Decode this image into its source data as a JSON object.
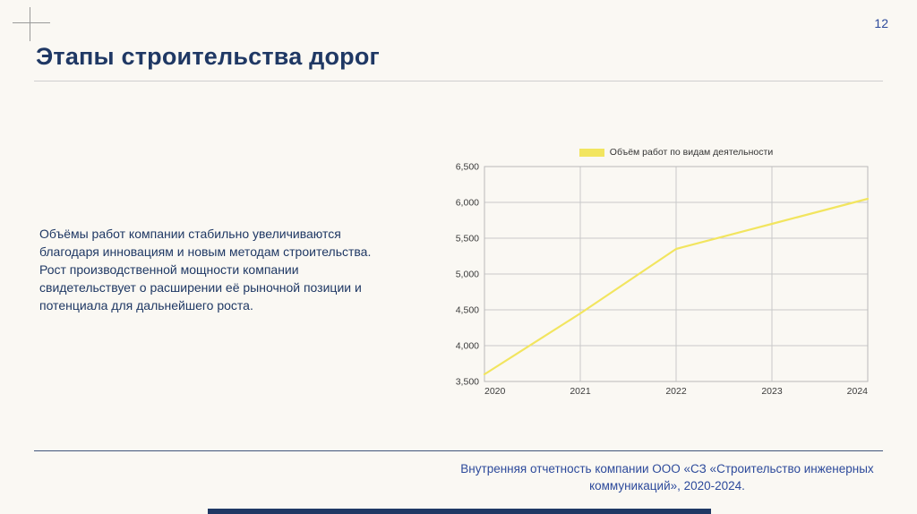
{
  "page": {
    "number": "12",
    "title": "Этапы строительства дорог",
    "body_text": "Объёмы работ компании стабильно увеличиваются благодаря инновациям и новым методам строительства. Рост производственной мощности компании свидетельствует о расширении её рыночной позиции и потенциала для дальнейшего роста.",
    "footer_text": "Внутренняя отчетность компании ООО «СЗ «Строительство инженерных коммуникаций», 2020-2024."
  },
  "colors": {
    "accent_navy": "#1f3864",
    "text_blue": "#2d4a9b",
    "line_yellow": "#f2e55f",
    "grid": "#c9c9c9",
    "plot_border": "#b9b9b9",
    "background": "#faf8f3"
  },
  "chart_data": {
    "type": "line",
    "title": "",
    "legend": [
      {
        "label": "Объём работ по видам деятельности",
        "color": "#f2e55f"
      }
    ],
    "legend_position": "top",
    "categories": [
      "2020",
      "2021",
      "2022",
      "2023",
      "2024"
    ],
    "series": [
      {
        "name": "Объём работ по видам деятельности",
        "values": [
          3600,
          4450,
          5350,
          5700,
          6050
        ]
      }
    ],
    "xlabel": "",
    "ylabel": "",
    "ylim": [
      3500,
      6500
    ],
    "ytick_step": 500,
    "ytick_labels": [
      "3,500",
      "4,000",
      "4,500",
      "5,000",
      "5,500",
      "6,000",
      "6,500"
    ],
    "grid": true
  }
}
